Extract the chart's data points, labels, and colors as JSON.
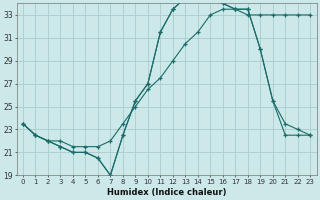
{
  "xlabel": "Humidex (Indice chaleur)",
  "ylabel": "",
  "bg_color": "#cce8e8",
  "grid_color": "#aacccc",
  "line_color": "#1a6b6b",
  "xlim": [
    -0.5,
    23.5
  ],
  "ylim": [
    19,
    34
  ],
  "yticks": [
    19,
    21,
    23,
    25,
    27,
    29,
    31,
    33
  ],
  "xticks": [
    0,
    1,
    2,
    3,
    4,
    5,
    6,
    7,
    8,
    9,
    10,
    11,
    12,
    13,
    14,
    15,
    16,
    17,
    18,
    19,
    20,
    21,
    22,
    23
  ],
  "series1_x": [
    0,
    1,
    2,
    3,
    4,
    5,
    6,
    7,
    8,
    9,
    10,
    11,
    12,
    13,
    14,
    15,
    16,
    17,
    18,
    19,
    20,
    21,
    22,
    23
  ],
  "series1_y": [
    23.5,
    22.5,
    22.0,
    22.0,
    21.5,
    21.5,
    21.5,
    22.0,
    23.5,
    25.0,
    26.5,
    27.5,
    29.0,
    30.5,
    31.5,
    33.0,
    33.5,
    33.5,
    33.0,
    33.0,
    33.0,
    33.0,
    33.0,
    33.0
  ],
  "series2_x": [
    0,
    1,
    2,
    3,
    4,
    5,
    6,
    7,
    8,
    9,
    10,
    11,
    12,
    13,
    14,
    15,
    16,
    17,
    18,
    19,
    20,
    21,
    22,
    23
  ],
  "series2_y": [
    23.5,
    22.5,
    22.0,
    21.5,
    21.0,
    21.0,
    20.5,
    19.0,
    22.5,
    25.5,
    27.0,
    31.5,
    33.5,
    34.5,
    34.5,
    34.5,
    34.0,
    33.5,
    33.5,
    30.0,
    25.5,
    23.5,
    23.0,
    22.5
  ],
  "series3_x": [
    0,
    1,
    2,
    3,
    4,
    5,
    6,
    7,
    8,
    9,
    10,
    11,
    12,
    13,
    14,
    15,
    16,
    17,
    18,
    19,
    20,
    21,
    22,
    23
  ],
  "series3_y": [
    23.5,
    22.5,
    22.0,
    21.5,
    21.0,
    21.0,
    20.5,
    19.0,
    22.5,
    25.5,
    27.0,
    31.5,
    33.5,
    34.5,
    34.5,
    34.5,
    34.0,
    33.5,
    33.5,
    30.0,
    25.5,
    22.5,
    22.5,
    22.5
  ]
}
